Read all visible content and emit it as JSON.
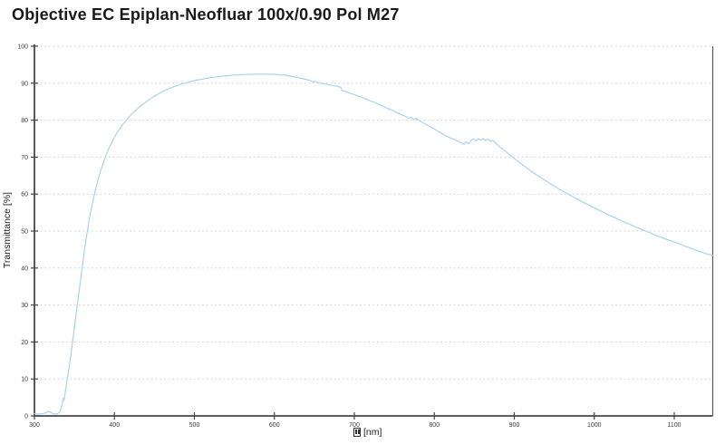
{
  "window": {
    "background": "#ffffff"
  },
  "chart_data": {
    "type": "line",
    "title": "Objective EC Epiplan-Neofluar 100x/0.90 Pol M27",
    "ylabel": "Transmittance [%]",
    "xlabel_unit": "[nm]",
    "xlabel_glyph": "missing-glyph-box",
    "x_ticks": [
      300,
      400,
      500,
      600,
      700,
      800,
      900,
      1000,
      1100
    ],
    "y_ticks": [
      0,
      10,
      20,
      30,
      40,
      50,
      60,
      70,
      80,
      90,
      100
    ],
    "xlim": [
      300,
      1148
    ],
    "ylim": [
      0,
      100
    ],
    "grid": "horizontal-dotted",
    "legend": "none",
    "colors": {
      "line": "#a9d3ee",
      "grid": "#cbcbcb",
      "axis": "#474747",
      "plot_border_right": "#5a5a5a",
      "tick_text": "#3c3c3c",
      "title_text": "#191919"
    },
    "series": [
      {
        "name": "transmittance",
        "points": [
          [
            300,
            0.6
          ],
          [
            305,
            0.5
          ],
          [
            310,
            0.6
          ],
          [
            314,
            0.8
          ],
          [
            317,
            1.2
          ],
          [
            320,
            1.0
          ],
          [
            323,
            0.6
          ],
          [
            326,
            0.5
          ],
          [
            329,
            0.6
          ],
          [
            332,
            1.2
          ],
          [
            334,
            2.5
          ],
          [
            336,
            4.8
          ],
          [
            337,
            4.2
          ],
          [
            339,
            7
          ],
          [
            341,
            10
          ],
          [
            344,
            14
          ],
          [
            347,
            19
          ],
          [
            350,
            24
          ],
          [
            353,
            29
          ],
          [
            356,
            34
          ],
          [
            359,
            39
          ],
          [
            362,
            44
          ],
          [
            365,
            48.5
          ],
          [
            368,
            52.5
          ],
          [
            371,
            56
          ],
          [
            374,
            59
          ],
          [
            377,
            61.8
          ],
          [
            380,
            64.2
          ],
          [
            383,
            66.4
          ],
          [
            386,
            68.4
          ],
          [
            389,
            70.2
          ],
          [
            392,
            71.8
          ],
          [
            395,
            73.2
          ],
          [
            398,
            74.5
          ],
          [
            401,
            75.7
          ],
          [
            404,
            76.8
          ],
          [
            407,
            77.8
          ],
          [
            410,
            78.7
          ],
          [
            413,
            79.5
          ],
          [
            416,
            80.3
          ],
          [
            419,
            81
          ],
          [
            422,
            81.7
          ],
          [
            425,
            82.3
          ],
          [
            430,
            83.3
          ],
          [
            435,
            84.2
          ],
          [
            440,
            85
          ],
          [
            445,
            85.8
          ],
          [
            450,
            86.5
          ],
          [
            455,
            87.1
          ],
          [
            460,
            87.7
          ],
          [
            465,
            88.2
          ],
          [
            470,
            88.7
          ],
          [
            475,
            89.1
          ],
          [
            480,
            89.5
          ],
          [
            485,
            89.8
          ],
          [
            490,
            90.1
          ],
          [
            495,
            90.4
          ],
          [
            500,
            90.7
          ],
          [
            505,
            90.9
          ],
          [
            510,
            91.1
          ],
          [
            515,
            91.3
          ],
          [
            520,
            91.5
          ],
          [
            525,
            91.6
          ],
          [
            530,
            91.8
          ],
          [
            535,
            91.9
          ],
          [
            540,
            92.0
          ],
          [
            545,
            92.1
          ],
          [
            550,
            92.2
          ],
          [
            555,
            92.25
          ],
          [
            560,
            92.3
          ],
          [
            565,
            92.35
          ],
          [
            570,
            92.4
          ],
          [
            575,
            92.4
          ],
          [
            580,
            92.45
          ],
          [
            585,
            92.4
          ],
          [
            590,
            92.45
          ],
          [
            595,
            92.4
          ],
          [
            600,
            92.4
          ],
          [
            605,
            92.3
          ],
          [
            610,
            92.2
          ],
          [
            613,
            92.3
          ],
          [
            616,
            92.0
          ],
          [
            620,
            91.9
          ],
          [
            625,
            91.7
          ],
          [
            630,
            91.5
          ],
          [
            635,
            91.2
          ],
          [
            640,
            91.0
          ],
          [
            645,
            90.7
          ],
          [
            648,
            90.3
          ],
          [
            651,
            90.5
          ],
          [
            655,
            90.1
          ],
          [
            660,
            89.9
          ],
          [
            665,
            89.7
          ],
          [
            670,
            89.5
          ],
          [
            675,
            89.3
          ],
          [
            680,
            89.1
          ],
          [
            683,
            88.9
          ],
          [
            685,
            88.0
          ],
          [
            688,
            87.8
          ],
          [
            692,
            87.5
          ],
          [
            696,
            87.2
          ],
          [
            700,
            86.9
          ],
          [
            705,
            86.5
          ],
          [
            710,
            86.1
          ],
          [
            715,
            85.7
          ],
          [
            720,
            85.2
          ],
          [
            725,
            84.8
          ],
          [
            730,
            84.3
          ],
          [
            735,
            83.8
          ],
          [
            740,
            83.3
          ],
          [
            745,
            82.9
          ],
          [
            750,
            82.4
          ],
          [
            755,
            81.9
          ],
          [
            760,
            81.4
          ],
          [
            765,
            80.9
          ],
          [
            768,
            80.5
          ],
          [
            771,
            80.8
          ],
          [
            774,
            80.2
          ],
          [
            777,
            80.5
          ],
          [
            780,
            80.0
          ],
          [
            785,
            79.4
          ],
          [
            790,
            78.8
          ],
          [
            795,
            78.2
          ],
          [
            800,
            77.6
          ],
          [
            805,
            76.9
          ],
          [
            810,
            76.3
          ],
          [
            815,
            75.7
          ],
          [
            820,
            75.2
          ],
          [
            825,
            74.7
          ],
          [
            830,
            74.3
          ],
          [
            834,
            73.8
          ],
          [
            837,
            73.4
          ],
          [
            840,
            74.2
          ],
          [
            843,
            73.6
          ],
          [
            846,
            74.6
          ],
          [
            849,
            74.9
          ],
          [
            852,
            74.4
          ],
          [
            855,
            75.0
          ],
          [
            858,
            74.6
          ],
          [
            861,
            75.0
          ],
          [
            864,
            74.5
          ],
          [
            867,
            74.9
          ],
          [
            870,
            74.3
          ],
          [
            873,
            74.6
          ],
          [
            876,
            73.9
          ],
          [
            879,
            73.4
          ],
          [
            882,
            72.8
          ],
          [
            886,
            72.1
          ],
          [
            890,
            71.4
          ],
          [
            895,
            70.5
          ],
          [
            900,
            69.6
          ],
          [
            905,
            68.8
          ],
          [
            910,
            68.0
          ],
          [
            915,
            67.2
          ],
          [
            920,
            66.4
          ],
          [
            925,
            65.6
          ],
          [
            930,
            64.9
          ],
          [
            935,
            64.2
          ],
          [
            940,
            63.5
          ],
          [
            945,
            62.8
          ],
          [
            950,
            62.2
          ],
          [
            955,
            61.5
          ],
          [
            960,
            60.9
          ],
          [
            965,
            60.3
          ],
          [
            970,
            59.7
          ],
          [
            975,
            59.1
          ],
          [
            980,
            58.5
          ],
          [
            985,
            57.9
          ],
          [
            990,
            57.4
          ],
          [
            995,
            56.8
          ],
          [
            1000,
            56.3
          ],
          [
            1010,
            55.2
          ],
          [
            1020,
            54.2
          ],
          [
            1030,
            53.2
          ],
          [
            1040,
            52.2
          ],
          [
            1050,
            51.3
          ],
          [
            1060,
            50.4
          ],
          [
            1070,
            49.5
          ],
          [
            1080,
            48.6
          ],
          [
            1090,
            47.8
          ],
          [
            1100,
            47.0
          ],
          [
            1110,
            46.2
          ],
          [
            1120,
            45.4
          ],
          [
            1130,
            44.6
          ],
          [
            1140,
            43.9
          ],
          [
            1148,
            43.4
          ]
        ]
      }
    ]
  }
}
